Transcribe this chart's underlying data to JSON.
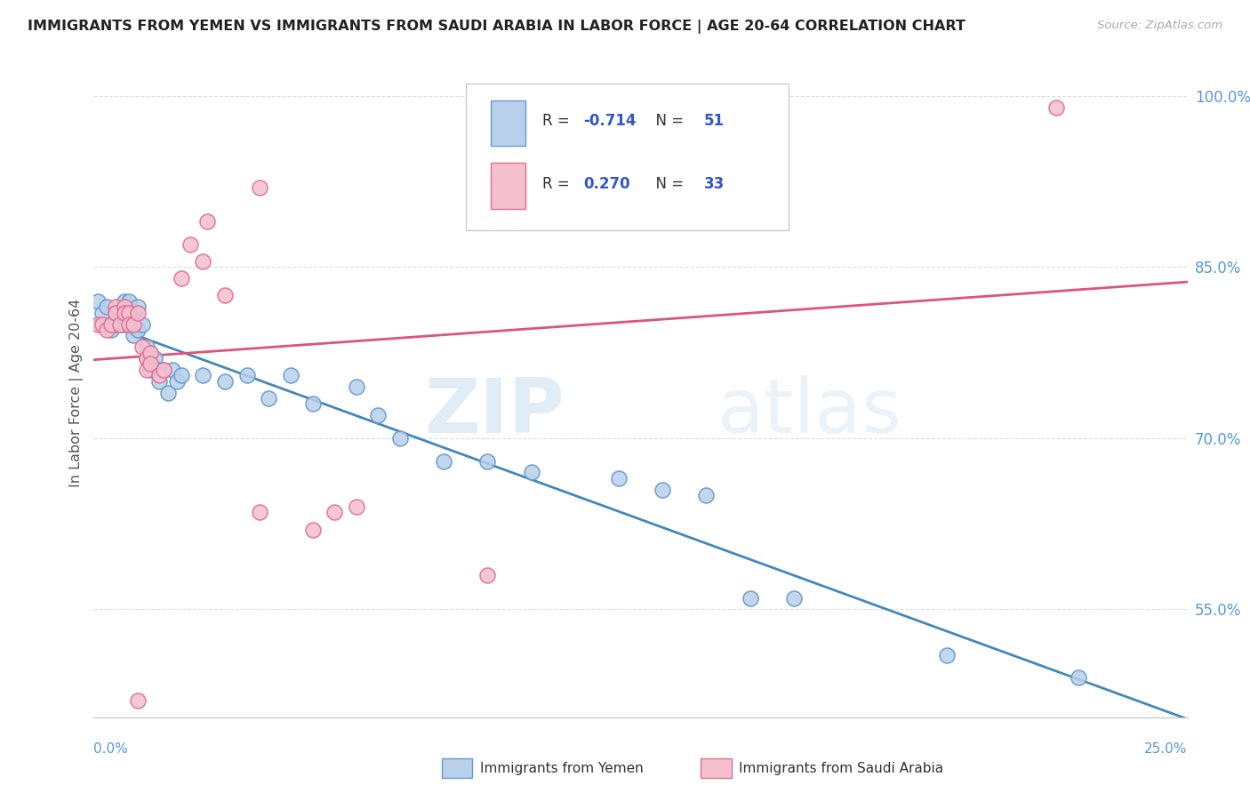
{
  "title": "IMMIGRANTS FROM YEMEN VS IMMIGRANTS FROM SAUDI ARABIA IN LABOR FORCE | AGE 20-64 CORRELATION CHART",
  "source": "Source: ZipAtlas.com",
  "ylabel": "In Labor Force | Age 20-64",
  "legend_label1": "Immigrants from Yemen",
  "legend_label2": "Immigrants from Saudi Arabia",
  "legend_R1": "-0.714",
  "legend_N1": "51",
  "legend_R2": "0.270",
  "legend_N2": "33",
  "watermark_part1": "ZIP",
  "watermark_part2": "atlas",
  "blue_color": "#b8d0ea",
  "pink_color": "#f5bfce",
  "blue_edge_color": "#6699cc",
  "pink_edge_color": "#e07090",
  "blue_line_color": "#4488bb",
  "pink_line_color": "#dd5577",
  "title_color": "#222222",
  "axis_tick_color": "#5599dd",
  "source_color": "#aaaaaa",
  "grid_color": "#dddddd",
  "background_color": "#ffffff",
  "blue_dots": [
    [
      0.001,
      0.82
    ],
    [
      0.002,
      0.81
    ],
    [
      0.003,
      0.815
    ],
    [
      0.004,
      0.8
    ],
    [
      0.004,
      0.795
    ],
    [
      0.005,
      0.81
    ],
    [
      0.005,
      0.8
    ],
    [
      0.006,
      0.8
    ],
    [
      0.006,
      0.81
    ],
    [
      0.007,
      0.82
    ],
    [
      0.007,
      0.81
    ],
    [
      0.007,
      0.8
    ],
    [
      0.008,
      0.82
    ],
    [
      0.008,
      0.8
    ],
    [
      0.009,
      0.81
    ],
    [
      0.009,
      0.8
    ],
    [
      0.009,
      0.79
    ],
    [
      0.01,
      0.815
    ],
    [
      0.01,
      0.795
    ],
    [
      0.011,
      0.8
    ],
    [
      0.012,
      0.78
    ],
    [
      0.012,
      0.77
    ],
    [
      0.013,
      0.76
    ],
    [
      0.013,
      0.775
    ],
    [
      0.014,
      0.77
    ],
    [
      0.015,
      0.76
    ],
    [
      0.015,
      0.75
    ],
    [
      0.016,
      0.76
    ],
    [
      0.017,
      0.74
    ],
    [
      0.018,
      0.76
    ],
    [
      0.019,
      0.75
    ],
    [
      0.02,
      0.755
    ],
    [
      0.025,
      0.755
    ],
    [
      0.03,
      0.75
    ],
    [
      0.035,
      0.755
    ],
    [
      0.04,
      0.735
    ],
    [
      0.045,
      0.755
    ],
    [
      0.05,
      0.73
    ],
    [
      0.06,
      0.745
    ],
    [
      0.065,
      0.72
    ],
    [
      0.07,
      0.7
    ],
    [
      0.08,
      0.68
    ],
    [
      0.09,
      0.68
    ],
    [
      0.1,
      0.67
    ],
    [
      0.12,
      0.665
    ],
    [
      0.13,
      0.655
    ],
    [
      0.14,
      0.65
    ],
    [
      0.15,
      0.56
    ],
    [
      0.16,
      0.56
    ],
    [
      0.195,
      0.51
    ],
    [
      0.225,
      0.49
    ]
  ],
  "pink_dots": [
    [
      0.001,
      0.8
    ],
    [
      0.002,
      0.8
    ],
    [
      0.003,
      0.795
    ],
    [
      0.004,
      0.8
    ],
    [
      0.005,
      0.815
    ],
    [
      0.005,
      0.81
    ],
    [
      0.006,
      0.8
    ],
    [
      0.007,
      0.815
    ],
    [
      0.007,
      0.81
    ],
    [
      0.008,
      0.81
    ],
    [
      0.008,
      0.8
    ],
    [
      0.009,
      0.8
    ],
    [
      0.01,
      0.81
    ],
    [
      0.011,
      0.78
    ],
    [
      0.012,
      0.77
    ],
    [
      0.012,
      0.76
    ],
    [
      0.013,
      0.775
    ],
    [
      0.013,
      0.765
    ],
    [
      0.015,
      0.755
    ],
    [
      0.016,
      0.76
    ],
    [
      0.02,
      0.84
    ],
    [
      0.022,
      0.87
    ],
    [
      0.025,
      0.855
    ],
    [
      0.026,
      0.89
    ],
    [
      0.03,
      0.825
    ],
    [
      0.038,
      0.635
    ],
    [
      0.05,
      0.62
    ],
    [
      0.055,
      0.635
    ],
    [
      0.06,
      0.64
    ],
    [
      0.09,
      0.58
    ],
    [
      0.01,
      0.47
    ],
    [
      0.038,
      0.92
    ],
    [
      0.22,
      0.99
    ]
  ],
  "xlim": [
    0.0,
    0.25
  ],
  "ylim": [
    0.455,
    1.025
  ],
  "yticks": [
    0.55,
    0.7,
    0.85,
    1.0
  ],
  "ytick_labels": [
    "55.0%",
    "70.0%",
    "85.0%",
    "100.0%"
  ],
  "xtick_positions": [
    0.0,
    0.025,
    0.05,
    0.075,
    0.1,
    0.125,
    0.15,
    0.175,
    0.2,
    0.225,
    0.25
  ]
}
